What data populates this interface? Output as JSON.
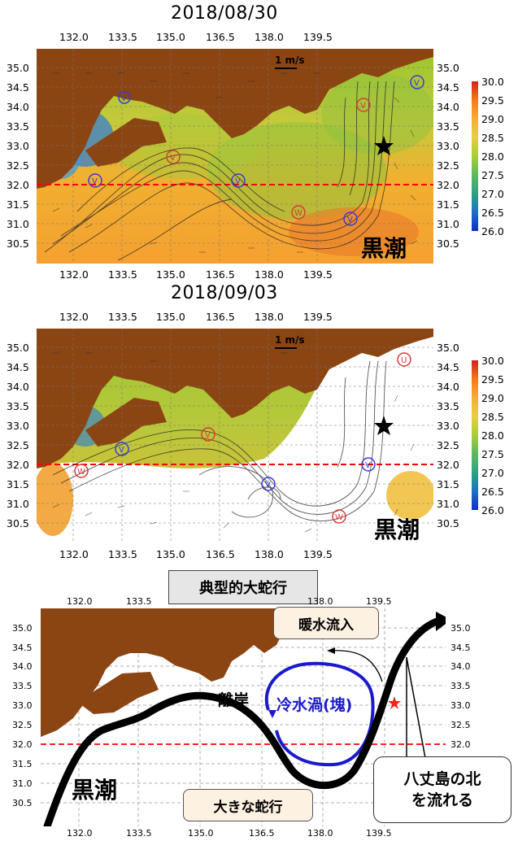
{
  "panel1": {
    "date": "2018/08/30",
    "scale_label": "1 m/s",
    "kuroshio_label": "黒潮",
    "eddies": [
      {
        "type": "V",
        "color": "red"
      },
      {
        "type": "V",
        "color": "red"
      },
      {
        "type": "V",
        "color": "blue"
      },
      {
        "type": "V",
        "color": "blue"
      },
      {
        "type": "V",
        "color": "blue"
      },
      {
        "type": "V",
        "color": "blue"
      },
      {
        "type": "W",
        "color": "red"
      },
      {
        "type": "V",
        "color": "blue"
      }
    ]
  },
  "panel2": {
    "date": "2018/09/03",
    "scale_label": "1 m/s",
    "kuroshio_label": "黒潮",
    "eddies": [
      {
        "type": "W",
        "color": "red"
      },
      {
        "type": "V",
        "color": "blue"
      },
      {
        "type": "V",
        "color": "red"
      },
      {
        "type": "V",
        "color": "blue"
      },
      {
        "type": "V",
        "color": "blue"
      },
      {
        "type": "W",
        "color": "red"
      },
      {
        "type": "U",
        "color": "red"
      }
    ]
  },
  "lon_ticks": [
    "132.0",
    "133.5",
    "135.0",
    "136.5",
    "138.0",
    "139.5"
  ],
  "lat_ticks": [
    "35.0",
    "34.5",
    "34.0",
    "33.5",
    "33.0",
    "32.5",
    "32.0",
    "31.5",
    "31.0",
    "30.5"
  ],
  "colorbar": {
    "ticks": [
      "30.0",
      "29.5",
      "29.0",
      "28.5",
      "28.0",
      "27.5",
      "27.0",
      "26.5",
      "26.0"
    ],
    "min": 26.0,
    "max": 30.0
  },
  "panel3": {
    "title": "典型的大蛇行",
    "kuroshio_label": "黒潮",
    "label_rigan": "離岸",
    "label_cold_eddy": "冷水渦(塊)",
    "callout_warm": "暖水流入",
    "callout_meander": "大きな蛇行",
    "callout_hachijo_line1": "八丈島の北",
    "callout_hachijo_line2": "を流れる"
  },
  "colors": {
    "land": "#8b4513",
    "kuroshio_path": "#000000",
    "cold_eddy": "#1a1acc",
    "ref_line": "#ff0000"
  }
}
